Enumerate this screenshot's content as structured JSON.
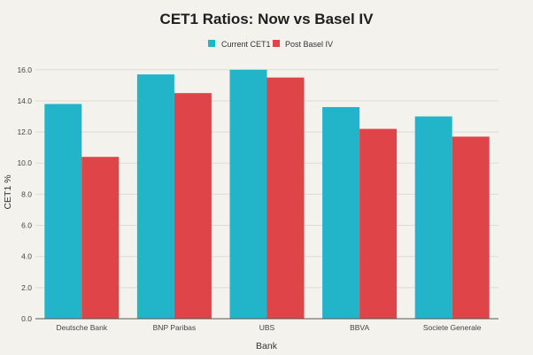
{
  "chart_data": {
    "type": "bar",
    "title": "CET1 Ratios: Now vs Basel IV",
    "xlabel": "Bank",
    "ylabel": "CET1 %",
    "ylim": [
      0,
      16.5
    ],
    "yticks": [
      "0.0",
      "2.0",
      "4.0",
      "6.0",
      "8.0",
      "10.0",
      "12.0",
      "14.0",
      "16.0"
    ],
    "categories": [
      "Deutsche Bank",
      "BNP Paribas",
      "UBS",
      "BBVA",
      "Societe Generale"
    ],
    "series": [
      {
        "name": "Current CET1",
        "color": "#22b5c9",
        "values": [
          13.8,
          15.7,
          16.0,
          13.6,
          13.0
        ]
      },
      {
        "name": "Post Basel IV",
        "color": "#de4448",
        "values": [
          10.4,
          14.5,
          15.5,
          12.2,
          11.7
        ]
      }
    ],
    "legend": "top-center",
    "grid": true
  }
}
